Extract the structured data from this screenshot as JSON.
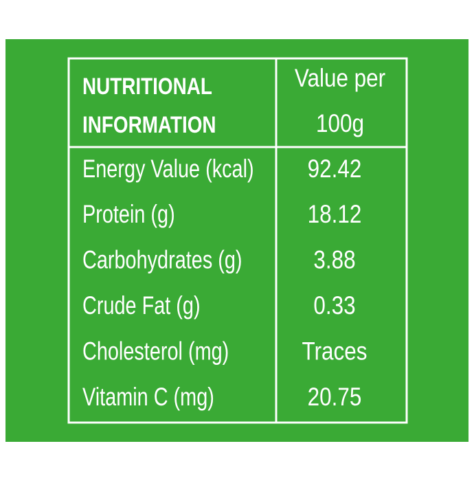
{
  "header": {
    "left": [
      "NUTRITIONAL",
      "INFORMATION"
    ],
    "right": [
      "Value per",
      "100g"
    ]
  },
  "table": {
    "rows": [
      [
        "Energy Value (kcal)",
        "92.42"
      ],
      [
        "Protein (g)",
        "18.12"
      ],
      [
        "Carbohydrates (g)",
        "3.88"
      ],
      [
        "Crude Fat (g)",
        "0.33"
      ],
      [
        "Cholesterol (mg)",
        "Traces"
      ],
      [
        "Vitamin C (mg)",
        "20.75"
      ]
    ]
  }
}
